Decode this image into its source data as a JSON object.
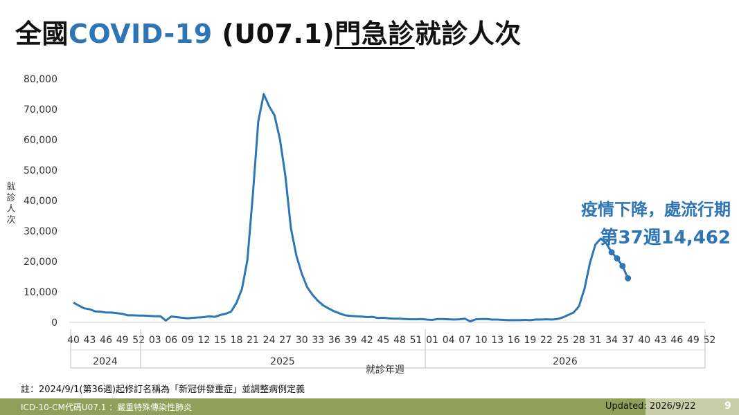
{
  "title": {
    "part1": "全國",
    "part2": "COVID-19",
    "part3": " (U07.1)",
    "part4": "門急診",
    "part5": "就診人次"
  },
  "callout": {
    "line1": "疫情下降，處流行期",
    "line2": "第37週14,462"
  },
  "footnote": "註：2024/9/1(第36週)起修訂名稱為「新冠併發重症」並調整病例定義",
  "footer": {
    "left": "ICD-10-CM代碼U07.1 ：嚴重特殊傳染性肺炎",
    "updated": "Updated: 2026/9/22",
    "page": "9"
  },
  "colors": {
    "accent": "#2e75b6",
    "footer_bar": "#8fa05a",
    "footer_box": "#c8cfa8"
  },
  "chart_data": {
    "type": "line",
    "xlabel": "就診年週",
    "ylabel": "就診人次",
    "ylim": [
      0,
      80000
    ],
    "yticks": [
      "0",
      "10,000",
      "20,000",
      "30,000",
      "40,000",
      "50,000",
      "60,000",
      "70,000",
      "80,000"
    ],
    "xtick_labels": [
      "40",
      "43",
      "46",
      "49",
      "52",
      "03",
      "06",
      "09",
      "12",
      "15",
      "18",
      "21",
      "24",
      "27",
      "30",
      "33",
      "36",
      "39",
      "42",
      "45",
      "48",
      "51",
      "01",
      "04",
      "07",
      "10",
      "13",
      "16",
      "19",
      "22",
      "25",
      "28",
      "31",
      "34",
      "37",
      "40",
      "43",
      "46",
      "49",
      "52"
    ],
    "years": [
      "2024",
      "2025",
      "2026"
    ],
    "series": [
      {
        "values": [
          6500,
          5500,
          4600,
          4300,
          3600,
          3500,
          3200,
          3200,
          3000,
          2800,
          2300,
          2300,
          2200,
          2200,
          2100,
          2000,
          2000,
          600,
          1900,
          1700,
          1500,
          1300,
          1500,
          1600,
          1700,
          2000,
          1800,
          2400,
          2800,
          3500,
          6400,
          11000,
          20500,
          42000,
          66000,
          75000,
          71000,
          68000,
          60000,
          48000,
          31000,
          22000,
          16000,
          11500,
          9000,
          7000,
          5500,
          4500,
          3600,
          2900,
          2300,
          2100,
          2000,
          1900,
          1700,
          1800,
          1400,
          1500,
          1300,
          1200,
          1200,
          1100,
          1000,
          1000,
          1100,
          900,
          800,
          1100,
          1100,
          1000,
          900,
          1000,
          1200,
          300,
          1000,
          1100,
          1100,
          900,
          900,
          800,
          700,
          700,
          700,
          800,
          700,
          900,
          900,
          1000,
          900,
          1100,
          1600,
          2400,
          3200,
          5300,
          11000,
          19500,
          25500,
          27500,
          26000,
          23000,
          21000,
          18500,
          14462
        ],
        "marked_points": [
          99,
          100,
          101,
          102
        ]
      }
    ]
  }
}
